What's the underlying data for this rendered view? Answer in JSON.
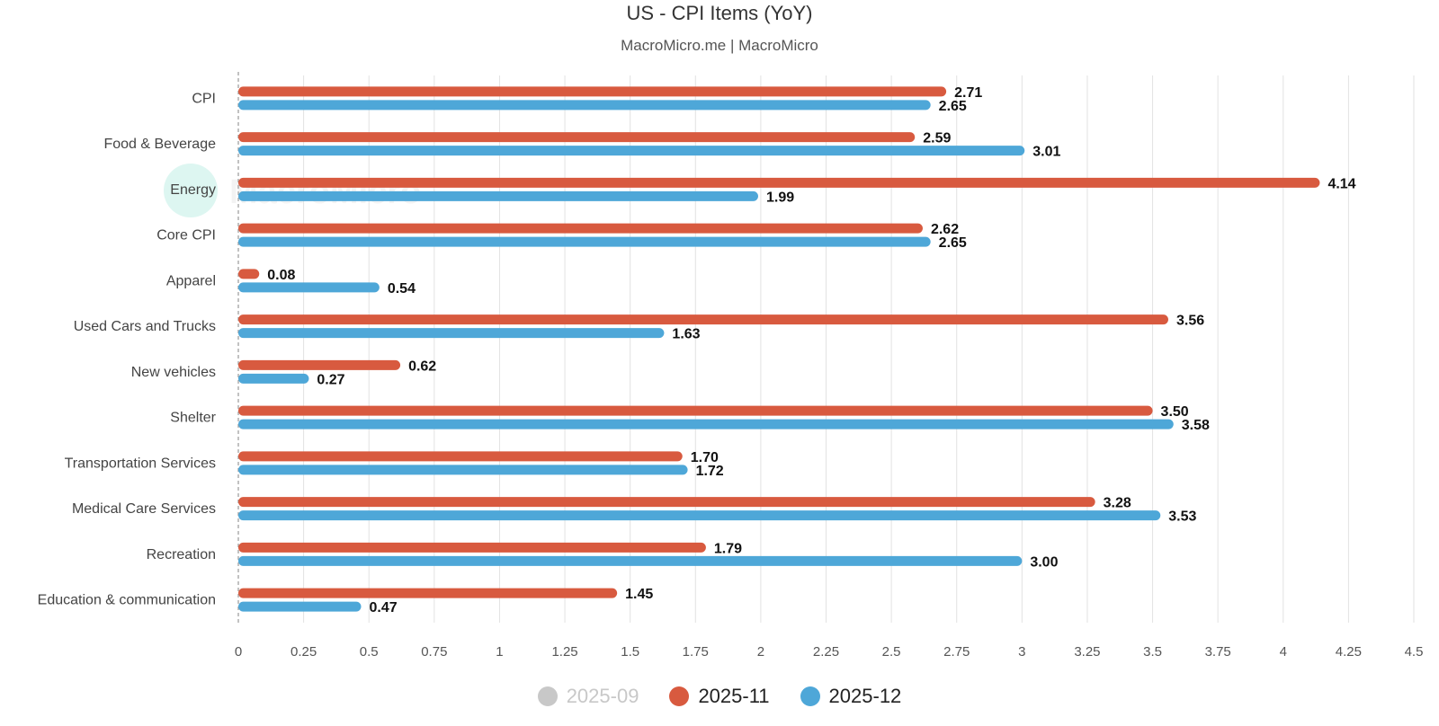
{
  "header": {
    "title": "US - CPI Items (YoY)",
    "subtitle": "MacroMicro.me | MacroMicro"
  },
  "watermark": {
    "text": "MacroMicro"
  },
  "legend": {
    "items": [
      {
        "label": "2025-09",
        "color": "#c8c8c8",
        "active": false
      },
      {
        "label": "2025-11",
        "color": "#d85a3f",
        "active": true
      },
      {
        "label": "2025-12",
        "color": "#4ea7d8",
        "active": true
      }
    ]
  },
  "chart_data": {
    "type": "bar",
    "orientation": "horizontal",
    "title": "US - CPI Items (YoY)",
    "subtitle": "MacroMicro.me | MacroMicro",
    "categories": [
      "CPI",
      "Food & Beverage",
      "Energy",
      "Core CPI",
      "Apparel",
      "Used Cars and Trucks",
      "New vehicles",
      "Shelter",
      "Transportation Services",
      "Medical Care Services",
      "Recreation",
      "Education & communication"
    ],
    "series": [
      {
        "name": "2025-11",
        "color": "#d85a3f",
        "values": [
          2.71,
          2.59,
          4.14,
          2.62,
          0.08,
          3.56,
          0.62,
          3.5,
          1.7,
          3.28,
          1.79,
          1.45
        ],
        "labels": [
          "2.71",
          "2.59",
          "4.14",
          "2.62",
          "0.08",
          "3.56",
          "0.62",
          "3.50",
          "1.70",
          "3.28",
          "1.79",
          "1.45"
        ]
      },
      {
        "name": "2025-12",
        "color": "#4ea7d8",
        "values": [
          2.65,
          3.01,
          1.99,
          2.65,
          0.54,
          1.63,
          0.27,
          3.58,
          1.72,
          3.53,
          3.0,
          0.47
        ],
        "labels": [
          "2.65",
          "3.01",
          "1.99",
          "2.65",
          "0.54",
          "1.63",
          "0.27",
          "3.58",
          "1.72",
          "3.53",
          "3.00",
          "0.47"
        ]
      }
    ],
    "xlim": [
      0,
      4.5
    ],
    "xticks": [
      "0",
      "0.25",
      "0.5",
      "0.75",
      "1",
      "1.25",
      "1.5",
      "1.75",
      "2",
      "2.25",
      "2.5",
      "2.75",
      "3",
      "3.25",
      "3.5",
      "3.75",
      "4",
      "4.25",
      "4.5"
    ],
    "grid": true,
    "legend_position": "bottom"
  }
}
